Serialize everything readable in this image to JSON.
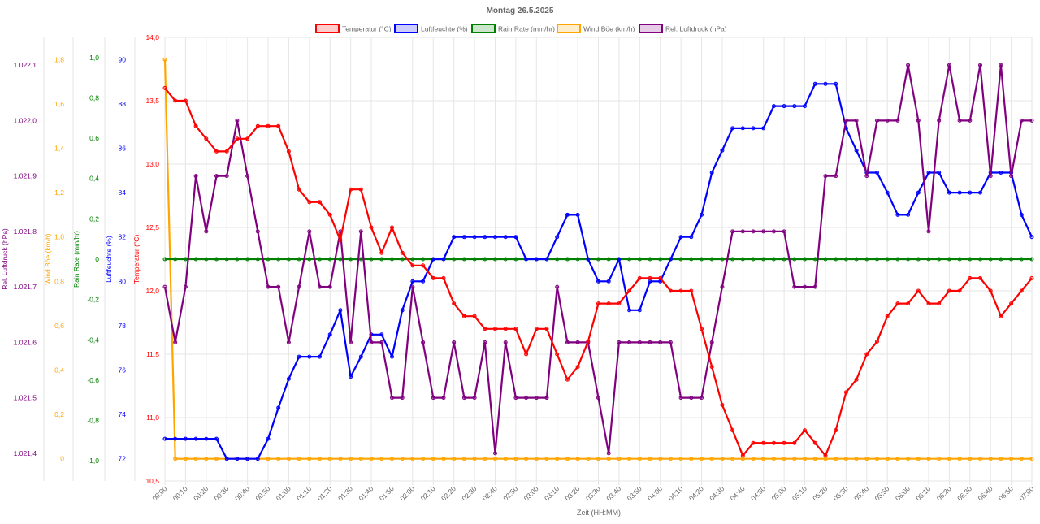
{
  "chart_data": {
    "type": "line",
    "title": "Montag 26.5.2025",
    "xlabel": "Zeit (HH:MM)",
    "x": [
      "00:00",
      "00:05",
      "00:10",
      "00:15",
      "00:20",
      "00:25",
      "00:30",
      "00:35",
      "00:40",
      "00:45",
      "00:50",
      "00:55",
      "01:00",
      "01:05",
      "01:10",
      "01:15",
      "01:20",
      "01:25",
      "01:30",
      "01:35",
      "01:40",
      "01:45",
      "01:50",
      "01:55",
      "02:00",
      "02:05",
      "02:10",
      "02:15",
      "02:20",
      "02:25",
      "02:30",
      "02:35",
      "02:40",
      "02:45",
      "02:50",
      "02:55",
      "03:00",
      "03:05",
      "03:10",
      "03:15",
      "03:20",
      "03:25",
      "03:30",
      "03:35",
      "03:40",
      "03:45",
      "03:50",
      "03:55",
      "04:00",
      "04:05",
      "04:10",
      "04:15",
      "04:20",
      "04:25",
      "04:30",
      "04:35",
      "04:40",
      "04:45",
      "04:50",
      "04:55",
      "05:00",
      "05:05",
      "05:10",
      "05:15",
      "05:20",
      "05:25",
      "05:30",
      "05:35",
      "05:40",
      "05:45",
      "05:50",
      "05:55",
      "06:00",
      "06:05",
      "06:10",
      "06:15",
      "06:20",
      "06:25",
      "06:30",
      "06:35",
      "06:40",
      "06:45",
      "06:50",
      "06:55",
      "07:00"
    ],
    "x_tick_labels": [
      "00:00",
      "00:10",
      "00:20",
      "00:30",
      "00:40",
      "00:50",
      "01:00",
      "01:10",
      "01:20",
      "01:30",
      "01:40",
      "01:50",
      "02:00",
      "02:10",
      "02:20",
      "02:30",
      "02:40",
      "02:50",
      "03:00",
      "03:10",
      "03:20",
      "03:30",
      "03:40",
      "03:50",
      "04:00",
      "04:10",
      "04:20",
      "04:30",
      "04:40",
      "04:50",
      "05:00",
      "05:10",
      "05:20",
      "05:30",
      "05:40",
      "05:50",
      "06:00",
      "06:10",
      "06:20",
      "06:30",
      "06:40",
      "06:50",
      "07:00"
    ],
    "grid": true,
    "legend_position": "top",
    "axes": [
      {
        "id": "pressure",
        "label": "Rel. Luftdruck (hPa)",
        "color": "#800080",
        "range": [
          1021.35,
          1022.15
        ],
        "tick_labels": [
          "1.021,4",
          "1.021,5",
          "1.021,6",
          "1.021,7",
          "1.021,8",
          "1.021,9",
          "1.022,0",
          "1.022,1"
        ],
        "tick_values": [
          1021.4,
          1021.5,
          1021.6,
          1021.7,
          1021.8,
          1021.9,
          1022.0,
          1022.1
        ]
      },
      {
        "id": "wind",
        "label": "Wind Böe (km/h)",
        "color": "#FFA500",
        "range": [
          -0.1,
          1.9
        ],
        "tick_labels": [
          "0",
          "0,2",
          "0,4",
          "0,6",
          "0,8",
          "1,0",
          "1,2",
          "1,4",
          "1,6",
          "1,8"
        ],
        "tick_values": [
          0,
          0.2,
          0.4,
          0.6,
          0.8,
          1.0,
          1.2,
          1.4,
          1.6,
          1.8
        ]
      },
      {
        "id": "rain",
        "label": "Rain Rate (mm/hr)",
        "color": "#008000",
        "range": [
          -1.1,
          1.1
        ],
        "tick_labels": [
          "-1,0",
          "-0,8",
          "-0,6",
          "-0,4",
          "-0,2",
          "0",
          "0,2",
          "0,4",
          "0,6",
          "0,8",
          "1,0"
        ],
        "tick_values": [
          -1.0,
          -0.8,
          -0.6,
          -0.4,
          -0.2,
          0,
          0.2,
          0.4,
          0.6,
          0.8,
          1.0
        ]
      },
      {
        "id": "humidity",
        "label": "Luftfeuchte (%)",
        "color": "#0000FF",
        "range": [
          71,
          91
        ],
        "tick_labels": [
          "72",
          "74",
          "76",
          "78",
          "80",
          "82",
          "84",
          "86",
          "88",
          "90"
        ],
        "tick_values": [
          72,
          74,
          76,
          78,
          80,
          82,
          84,
          86,
          88,
          90
        ]
      },
      {
        "id": "temp",
        "label": "Temperatur (°C)",
        "color": "#FF0000",
        "range": [
          10.5,
          14.0
        ],
        "tick_labels": [
          "10,5",
          "11,0",
          "11,5",
          "12,0",
          "12,5",
          "13,0",
          "13,5",
          "14,0"
        ],
        "tick_values": [
          10.5,
          11.0,
          11.5,
          12.0,
          12.5,
          13.0,
          13.5,
          14.0
        ]
      }
    ],
    "series": [
      {
        "name": "Temperatur (°C)",
        "axis": "temp",
        "color": "#FF0000",
        "values": [
          13.6,
          13.5,
          13.5,
          13.3,
          13.2,
          13.1,
          13.1,
          13.2,
          13.2,
          13.3,
          13.3,
          13.3,
          13.1,
          12.8,
          12.7,
          12.7,
          12.6,
          12.4,
          12.8,
          12.8,
          12.5,
          12.3,
          12.5,
          12.3,
          12.2,
          12.2,
          12.1,
          12.1,
          11.9,
          11.8,
          11.8,
          11.7,
          11.7,
          11.7,
          11.7,
          11.5,
          11.7,
          11.7,
          11.5,
          11.3,
          11.4,
          11.6,
          11.9,
          11.9,
          11.9,
          12.0,
          12.1,
          12.1,
          12.1,
          12.0,
          12.0,
          12.0,
          11.7,
          11.4,
          11.1,
          10.9,
          10.7,
          10.8,
          10.8,
          10.8,
          10.8,
          10.8,
          10.9,
          10.8,
          10.7,
          10.9,
          11.2,
          11.3,
          11.5,
          11.6,
          11.8,
          11.9,
          11.9,
          12.0,
          11.9,
          11.9,
          12.0,
          12.0,
          12.1,
          12.1,
          12.0,
          11.8,
          11.9,
          12.0,
          12.1
        ]
      },
      {
        "name": "Luftfeuchte (%)",
        "axis": "humidity",
        "color": "#0000FF",
        "values": [
          72.9,
          72.9,
          72.9,
          72.9,
          72.9,
          72.9,
          72.0,
          72.0,
          72.0,
          72.0,
          72.9,
          74.3,
          75.6,
          76.6,
          76.6,
          76.6,
          77.6,
          78.7,
          75.7,
          76.6,
          77.6,
          77.6,
          76.6,
          78.7,
          80.0,
          80.0,
          81.0,
          81.0,
          82.0,
          82.0,
          82.0,
          82.0,
          82.0,
          82.0,
          82.0,
          81.0,
          81.0,
          81.0,
          82.0,
          83.0,
          83.0,
          81.0,
          80.0,
          80.0,
          81.0,
          78.7,
          78.7,
          80.0,
          80.0,
          81.0,
          82.0,
          82.0,
          83.0,
          84.9,
          85.9,
          86.9,
          86.9,
          86.9,
          86.9,
          87.9,
          87.9,
          87.9,
          87.9,
          88.9,
          88.9,
          88.9,
          86.9,
          85.9,
          84.9,
          84.9,
          84.0,
          83.0,
          83.0,
          84.0,
          84.9,
          84.9,
          84.0,
          84.0,
          84.0,
          84.0,
          84.9,
          84.9,
          84.9,
          83.0,
          82.0
        ]
      },
      {
        "name": "Rain Rate (mm/hr)",
        "axis": "rain",
        "color": "#008000",
        "values": [
          0,
          0,
          0,
          0,
          0,
          0,
          0,
          0,
          0,
          0,
          0,
          0,
          0,
          0,
          0,
          0,
          0,
          0,
          0,
          0,
          0,
          0,
          0,
          0,
          0,
          0,
          0,
          0,
          0,
          0,
          0,
          0,
          0,
          0,
          0,
          0,
          0,
          0,
          0,
          0,
          0,
          0,
          0,
          0,
          0,
          0,
          0,
          0,
          0,
          0,
          0,
          0,
          0,
          0,
          0,
          0,
          0,
          0,
          0,
          0,
          0,
          0,
          0,
          0,
          0,
          0,
          0,
          0,
          0,
          0,
          0,
          0,
          0,
          0,
          0,
          0,
          0,
          0,
          0,
          0,
          0,
          0,
          0,
          0,
          0
        ]
      },
      {
        "name": "Wind Böe (km/h)",
        "axis": "wind",
        "color": "#FFA500",
        "values": [
          1.8,
          0,
          0,
          0,
          0,
          0,
          0,
          0,
          0,
          0,
          0,
          0,
          0,
          0,
          0,
          0,
          0,
          0,
          0,
          0,
          0,
          0,
          0,
          0,
          0,
          0,
          0,
          0,
          0,
          0,
          0,
          0,
          0,
          0,
          0,
          0,
          0,
          0,
          0,
          0,
          0,
          0,
          0,
          0,
          0,
          0,
          0,
          0,
          0,
          0,
          0,
          0,
          0,
          0,
          0,
          0,
          0,
          0,
          0,
          0,
          0,
          0,
          0,
          0,
          0,
          0,
          0,
          0,
          0,
          0,
          0,
          0,
          0,
          0,
          0,
          0,
          0,
          0,
          0,
          0,
          0,
          0,
          0,
          0,
          0
        ]
      },
      {
        "name": "Rel. Luftdruck (hPa)",
        "axis": "pressure",
        "color": "#800080",
        "values": [
          1021.7,
          1021.6,
          1021.7,
          1021.9,
          1021.8,
          1021.9,
          1021.9,
          1022.0,
          1021.9,
          1021.8,
          1021.7,
          1021.7,
          1021.6,
          1021.7,
          1021.8,
          1021.7,
          1021.7,
          1021.8,
          1021.6,
          1021.8,
          1021.6,
          1021.6,
          1021.5,
          1021.5,
          1021.7,
          1021.6,
          1021.5,
          1021.5,
          1021.6,
          1021.5,
          1021.5,
          1021.6,
          1021.4,
          1021.6,
          1021.5,
          1021.5,
          1021.5,
          1021.5,
          1021.7,
          1021.6,
          1021.6,
          1021.6,
          1021.5,
          1021.4,
          1021.6,
          1021.6,
          1021.6,
          1021.6,
          1021.6,
          1021.6,
          1021.5,
          1021.5,
          1021.5,
          1021.6,
          1021.7,
          1021.8,
          1021.8,
          1021.8,
          1021.8,
          1021.8,
          1021.8,
          1021.7,
          1021.7,
          1021.7,
          1021.9,
          1021.9,
          1022.0,
          1022.0,
          1021.9,
          1022.0,
          1022.0,
          1022.0,
          1022.1,
          1022.0,
          1021.8,
          1022.0,
          1022.1,
          1022.0,
          1022.0,
          1022.1,
          1021.9,
          1022.1,
          1021.9,
          1022.0,
          1022.0
        ]
      }
    ]
  }
}
